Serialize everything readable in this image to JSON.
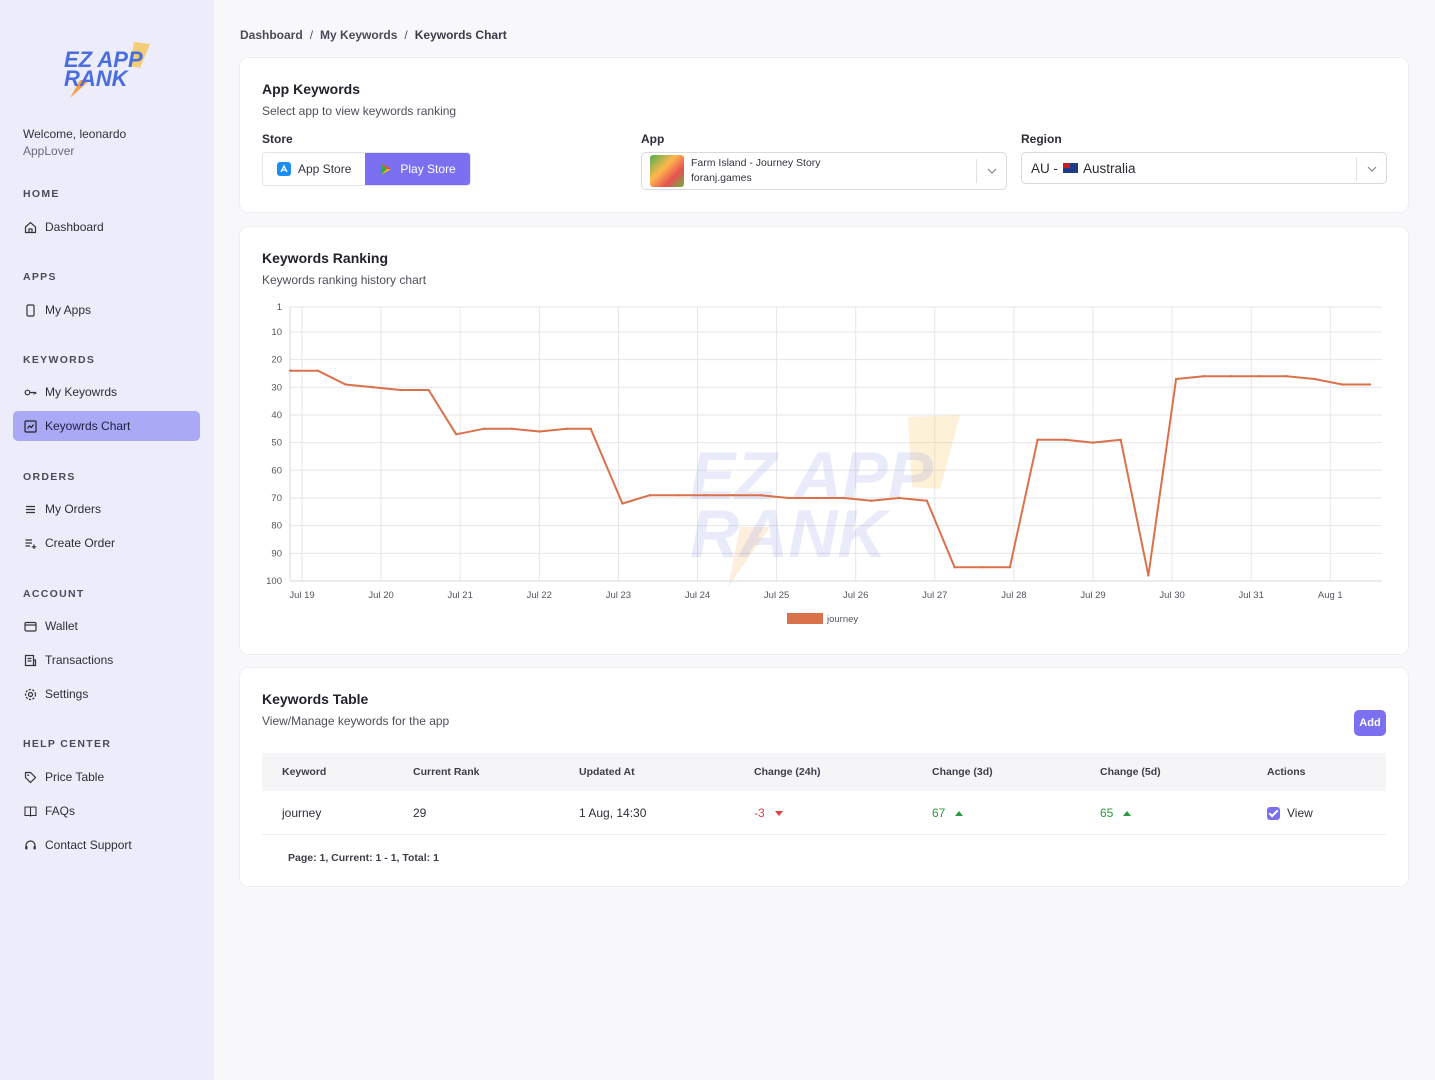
{
  "sidebar": {
    "logo": {
      "line1": "EZ APP",
      "line2": "RANK"
    },
    "welcome": "Welcome, leonardo",
    "role": "AppLover",
    "sections": {
      "home": "HOME",
      "apps": "APPS",
      "keywords": "KEYWORDS",
      "orders": "ORDERS",
      "account": "ACCOUNT",
      "help": "HELP CENTER"
    },
    "items": {
      "dashboard": "Dashboard",
      "my_apps": "My Apps",
      "my_keywords": "My Keyowrds",
      "keywords_chart": "Keyowrds Chart",
      "my_orders": "My Orders",
      "create_order": "Create Order",
      "wallet": "Wallet",
      "transactions": "Transactions",
      "settings": "Settings",
      "price_table": "Price Table",
      "faqs": "FAQs",
      "contact_support": "Contact Support"
    }
  },
  "breadcrumb": [
    "Dashboard",
    "My Keywords",
    "Keywords Chart"
  ],
  "app_keywords": {
    "title": "App Keywords",
    "subtitle": "Select app to view keywords ranking",
    "store_label": "Store",
    "store_options": [
      "App Store",
      "Play Store"
    ],
    "store_selected": "Play Store",
    "app_label": "App",
    "app_name": "Farm Island - Journey Story",
    "app_dev": "foranj.games",
    "region_label": "Region",
    "region_code": "AU -",
    "region_name": "Australia"
  },
  "ranking": {
    "title": "Keywords Ranking",
    "subtitle": "Keywords ranking history chart"
  },
  "chart_data": {
    "type": "line",
    "title": "",
    "xlabel": "",
    "ylabel": "",
    "y_inverted": true,
    "ylim": [
      1,
      100
    ],
    "y_ticks": [
      1,
      10,
      20,
      30,
      40,
      50,
      60,
      70,
      80,
      90,
      100
    ],
    "x_ticks": [
      "Jul 19",
      "Jul 20",
      "Jul 21",
      "Jul 22",
      "Jul 23",
      "Jul 24",
      "Jul 25",
      "Jul 26",
      "Jul 27",
      "Jul 28",
      "Jul 29",
      "Jul 30",
      "Jul 31",
      "Aug 1"
    ],
    "grid": true,
    "legend_position": "bottom",
    "watermark": [
      "EZ APP",
      "RANK"
    ],
    "series": [
      {
        "name": "journey",
        "color": "#d9724a",
        "x": [
          -0.15,
          0.2,
          0.55,
          0.9,
          1.25,
          1.6,
          1.95,
          2.3,
          2.65,
          3.0,
          3.35,
          3.65,
          4.05,
          4.4,
          4.75,
          5.1,
          5.45,
          5.8,
          6.15,
          6.5,
          6.85,
          7.2,
          7.55,
          7.9,
          8.25,
          8.6,
          8.95,
          9.3,
          9.65,
          10.0,
          10.35,
          10.7,
          11.05,
          11.4,
          11.75,
          12.1,
          12.45,
          12.8,
          13.15,
          13.5
        ],
        "y": [
          24,
          24,
          29,
          30,
          31,
          31,
          47,
          45,
          45,
          46,
          45,
          45,
          72,
          69,
          69,
          69,
          69,
          69,
          70,
          70,
          70,
          71,
          70,
          71,
          95,
          95,
          95,
          49,
          49,
          50,
          49,
          98,
          27,
          26,
          26,
          26,
          26,
          27,
          29,
          29
        ]
      }
    ]
  },
  "table": {
    "title": "Keywords Table",
    "subtitle": "View/Manage keywords for the app",
    "add_label": "Add",
    "headers": [
      "Keyword",
      "Current Rank",
      "Updated At",
      "Change (24h)",
      "Change (3d)",
      "Change (5d)",
      "Actions"
    ],
    "rows": [
      {
        "keyword": "journey",
        "rank": "29",
        "updated": "1 Aug, 14:30",
        "c24": "-3",
        "c3d": "67",
        "c5d": "65",
        "action": "View"
      }
    ],
    "pager": "Page: 1, Current: 1 - 1, Total: 1"
  }
}
